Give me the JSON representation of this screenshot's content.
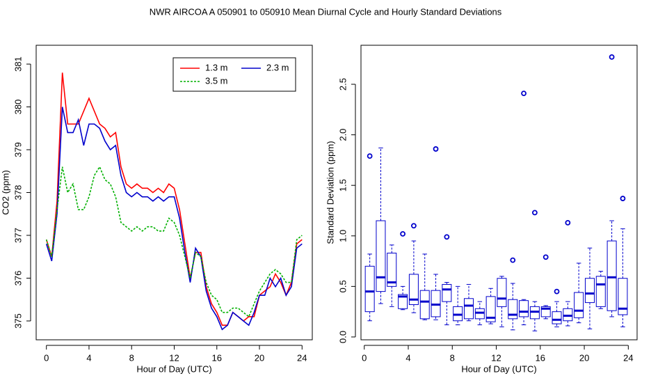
{
  "title": "NWR   AIRCOA A   050901 to 050910   Mean Diurnal Cycle and Hourly Standard Deviations",
  "chart_data": [
    {
      "type": "line",
      "xlabel": "Hour of Day (UTC)",
      "ylabel": "CO2 (ppm)",
      "x": [
        0,
        0.5,
        1,
        1.5,
        2,
        2.5,
        3,
        3.5,
        4,
        4.5,
        5,
        5.5,
        6,
        6.5,
        7,
        7.5,
        8,
        8.5,
        9,
        9.5,
        10,
        10.5,
        11,
        11.5,
        12,
        12.5,
        13,
        13.5,
        14,
        14.5,
        15,
        15.5,
        16,
        16.5,
        17,
        17.5,
        18,
        18.5,
        19,
        19.5,
        20,
        20.5,
        21,
        21.5,
        22,
        22.5,
        23,
        23.5,
        24
      ],
      "series": [
        {
          "name": "1.3 m",
          "color": "#ff0000",
          "dash": false,
          "values": [
            376.9,
            376.5,
            377.8,
            380.8,
            379.6,
            379.6,
            379.6,
            379.9,
            380.2,
            379.9,
            379.6,
            379.5,
            379.3,
            379.4,
            378.6,
            378.2,
            378.1,
            378.2,
            378.1,
            378.1,
            378.0,
            378.1,
            378.0,
            378.2,
            378.1,
            377.6,
            376.8,
            376.0,
            376.6,
            376.6,
            375.8,
            375.4,
            375.2,
            374.9,
            374.9,
            375.2,
            375.1,
            375.0,
            375.1,
            375.1,
            375.6,
            375.7,
            375.8,
            376.1,
            375.9,
            375.6,
            375.9,
            376.8,
            376.9
          ]
        },
        {
          "name": "2.3 m",
          "color": "#0000cc",
          "dash": false,
          "values": [
            376.8,
            376.4,
            377.5,
            380.0,
            379.4,
            379.4,
            379.7,
            379.1,
            379.6,
            379.6,
            379.5,
            379.2,
            379.0,
            379.1,
            378.4,
            378.0,
            377.9,
            378.0,
            377.9,
            377.9,
            377.8,
            377.9,
            377.8,
            377.9,
            377.9,
            377.4,
            376.6,
            375.9,
            376.7,
            376.5,
            375.7,
            375.3,
            375.1,
            374.8,
            374.9,
            375.2,
            375.1,
            375.0,
            374.9,
            375.2,
            375.6,
            375.6,
            376.0,
            375.8,
            376.0,
            375.6,
            375.8,
            376.7,
            376.8
          ]
        },
        {
          "name": "3.5 m",
          "color": "#00b000",
          "dash": true,
          "values": [
            376.9,
            376.5,
            377.6,
            378.6,
            378.0,
            378.2,
            377.6,
            377.6,
            377.9,
            378.4,
            378.6,
            378.3,
            378.2,
            377.9,
            377.3,
            377.2,
            377.1,
            377.2,
            377.1,
            377.2,
            377.2,
            377.1,
            377.1,
            377.4,
            377.3,
            377.0,
            376.5,
            376.0,
            376.6,
            376.5,
            375.9,
            375.6,
            375.5,
            375.2,
            375.2,
            375.3,
            375.3,
            375.2,
            375.1,
            375.4,
            375.7,
            375.9,
            376.1,
            376.2,
            376.1,
            375.9,
            375.9,
            376.9,
            377.0
          ]
        }
      ],
      "xlim": [
        -0.96,
        24.96
      ],
      "xticks": [
        0,
        4,
        8,
        12,
        16,
        20,
        24
      ],
      "ylim": [
        374.56,
        381.44
      ],
      "yticks": [
        375,
        376,
        377,
        378,
        379,
        380,
        381
      ],
      "legend": "topright"
    },
    {
      "type": "boxplot",
      "xlabel": "Hour of Day (UTC)",
      "ylabel": "Standard Deviation (ppm)",
      "color": "#0000cc",
      "boxes": [
        {
          "x": 0.5,
          "whislo": 0.16,
          "q1": 0.25,
          "med": 0.45,
          "q3": 0.7,
          "whishi": 0.82,
          "outliers": [
            1.79
          ]
        },
        {
          "x": 1.5,
          "whislo": 0.33,
          "q1": 0.45,
          "med": 0.59,
          "q3": 1.15,
          "whishi": 1.87,
          "outliers": []
        },
        {
          "x": 2.5,
          "whislo": 0.3,
          "q1": 0.5,
          "med": 0.54,
          "q3": 0.83,
          "whishi": 0.91,
          "outliers": []
        },
        {
          "x": 3.5,
          "whislo": 0.27,
          "q1": 0.28,
          "med": 0.4,
          "q3": 0.42,
          "whishi": 0.5,
          "outliers": [
            1.02
          ]
        },
        {
          "x": 4.5,
          "whislo": 0.24,
          "q1": 0.32,
          "med": 0.37,
          "q3": 0.62,
          "whishi": 0.95,
          "outliers": [
            1.1
          ]
        },
        {
          "x": 5.5,
          "whislo": 0.17,
          "q1": 0.18,
          "med": 0.35,
          "q3": 0.46,
          "whishi": 0.82,
          "outliers": []
        },
        {
          "x": 6.5,
          "whislo": 0.17,
          "q1": 0.2,
          "med": 0.32,
          "q3": 0.46,
          "whishi": 0.62,
          "outliers": [
            1.86
          ]
        },
        {
          "x": 7.5,
          "whislo": 0.12,
          "q1": 0.35,
          "med": 0.47,
          "q3": 0.52,
          "whishi": 0.54,
          "outliers": [
            0.99
          ]
        },
        {
          "x": 8.5,
          "whislo": 0.12,
          "q1": 0.16,
          "med": 0.22,
          "q3": 0.3,
          "whishi": 0.5,
          "outliers": []
        },
        {
          "x": 9.5,
          "whislo": 0.16,
          "q1": 0.18,
          "med": 0.31,
          "q3": 0.38,
          "whishi": 0.52,
          "outliers": []
        },
        {
          "x": 10.5,
          "whislo": 0.12,
          "q1": 0.18,
          "med": 0.24,
          "q3": 0.28,
          "whishi": 0.35,
          "outliers": []
        },
        {
          "x": 11.5,
          "whislo": 0.13,
          "q1": 0.15,
          "med": 0.19,
          "q3": 0.4,
          "whishi": 0.48,
          "outliers": []
        },
        {
          "x": 12.5,
          "whislo": 0.1,
          "q1": 0.3,
          "med": 0.38,
          "q3": 0.58,
          "whishi": 0.6,
          "outliers": []
        },
        {
          "x": 13.5,
          "whislo": 0.07,
          "q1": 0.18,
          "med": 0.22,
          "q3": 0.37,
          "whishi": 0.53,
          "outliers": [
            0.76
          ]
        },
        {
          "x": 14.5,
          "whislo": 0.12,
          "q1": 0.2,
          "med": 0.25,
          "q3": 0.36,
          "whishi": 0.37,
          "outliers": [
            2.41
          ]
        },
        {
          "x": 15.5,
          "whislo": 0.06,
          "q1": 0.18,
          "med": 0.25,
          "q3": 0.3,
          "whishi": 0.35,
          "outliers": [
            1.23
          ]
        },
        {
          "x": 16.5,
          "whislo": 0.18,
          "q1": 0.2,
          "med": 0.28,
          "q3": 0.3,
          "whishi": 0.31,
          "outliers": [
            0.79
          ]
        },
        {
          "x": 17.5,
          "whislo": 0.1,
          "q1": 0.13,
          "med": 0.17,
          "q3": 0.25,
          "whishi": 0.35,
          "outliers": [
            0.45
          ]
        },
        {
          "x": 18.5,
          "whislo": 0.11,
          "q1": 0.16,
          "med": 0.21,
          "q3": 0.28,
          "whishi": 0.35,
          "outliers": [
            1.13
          ]
        },
        {
          "x": 19.5,
          "whislo": 0.14,
          "q1": 0.19,
          "med": 0.26,
          "q3": 0.44,
          "whishi": 0.73,
          "outliers": []
        },
        {
          "x": 20.5,
          "whislo": 0.08,
          "q1": 0.34,
          "med": 0.43,
          "q3": 0.58,
          "whishi": 0.88,
          "outliers": []
        },
        {
          "x": 21.5,
          "whislo": 0.28,
          "q1": 0.3,
          "med": 0.52,
          "q3": 0.6,
          "whishi": 0.65,
          "outliers": []
        },
        {
          "x": 22.5,
          "whislo": 0.2,
          "q1": 0.26,
          "med": 0.59,
          "q3": 0.95,
          "whishi": 1.15,
          "outliers": [
            2.77
          ]
        },
        {
          "x": 23.5,
          "whislo": 0.1,
          "q1": 0.22,
          "med": 0.28,
          "q3": 0.58,
          "whishi": 1.07,
          "outliers": [
            1.37
          ]
        }
      ],
      "xlim": [
        -0.3,
        24.8
      ],
      "xticks": [
        0,
        4,
        8,
        12,
        16,
        20,
        24
      ],
      "ylim": [
        -0.028,
        2.886
      ],
      "yticks": [
        {
          "value": 0,
          "label": "0.0"
        },
        0.5,
        {
          "value": 1,
          "label": "1.0"
        },
        1.5,
        {
          "value": 2,
          "label": "2.0"
        },
        2.5
      ]
    }
  ]
}
